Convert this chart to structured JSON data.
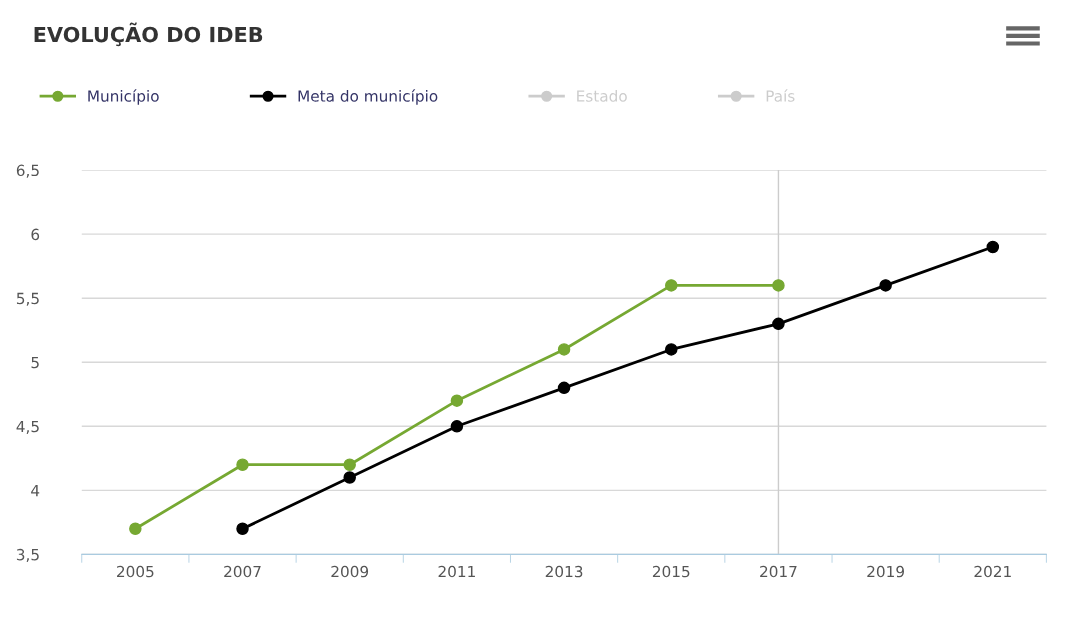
{
  "chart_data": {
    "type": "line",
    "title": "EVOLUÇÃO DO IDEB",
    "categories": [
      "2005",
      "2007",
      "2009",
      "2011",
      "2013",
      "2015",
      "2017",
      "2019",
      "2021"
    ],
    "series": [
      {
        "name": "Município",
        "color": "#76a832",
        "values": [
          3.7,
          4.2,
          4.2,
          4.7,
          5.1,
          5.6,
          5.6,
          null,
          null
        ]
      },
      {
        "name": "Meta do município",
        "color": "#000000",
        "values": [
          null,
          3.7,
          4.1,
          4.5,
          4.8,
          5.1,
          5.3,
          5.6,
          5.9
        ]
      },
      {
        "name": "Estado",
        "color": "#cccccc",
        "values": [
          null,
          null,
          null,
          null,
          null,
          null,
          null,
          null,
          null
        ]
      },
      {
        "name": "País",
        "color": "#cccccc",
        "values": [
          null,
          null,
          null,
          null,
          null,
          null,
          null,
          null,
          null
        ]
      }
    ],
    "ylim": [
      3.5,
      6.5
    ],
    "yticks": [
      {
        "value": 3.5,
        "label": "3,5"
      },
      4,
      {
        "value": 4.5,
        "label": "4,5"
      },
      5,
      {
        "value": 5.5,
        "label": "5,5"
      },
      6,
      {
        "value": 6.5,
        "label": "6,5"
      }
    ],
    "ref_lines": [
      {
        "axis": "x",
        "value": "2017",
        "color": "#cccccc"
      }
    ],
    "grid": "y",
    "legend": "top left",
    "marker": "circle",
    "line_style": "solid"
  }
}
